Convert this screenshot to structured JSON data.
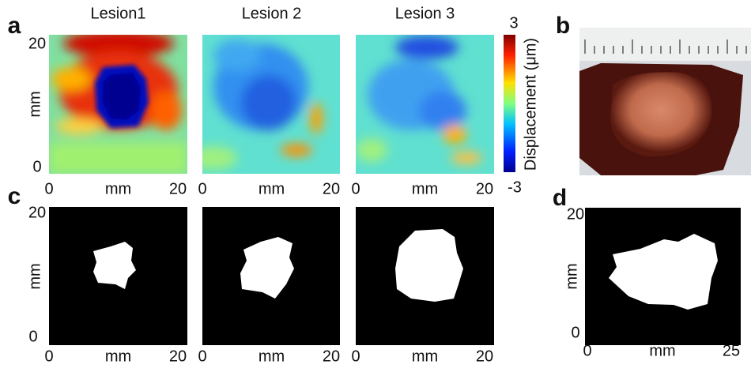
{
  "panel_a": {
    "label": "a",
    "titles": [
      "Lesion1",
      "Lesion 2",
      "Lesion 3"
    ],
    "y_axis": {
      "label": "mm",
      "ticks": [
        "20",
        "0"
      ]
    },
    "x_axis": {
      "label": "mm",
      "ticks": [
        "0",
        "20"
      ]
    },
    "colorbar": {
      "label": "Displacement (μm)",
      "max": "3",
      "min": "-3"
    }
  },
  "panel_b": {
    "label": "b"
  },
  "panel_c": {
    "label": "c",
    "y_axis": {
      "label": "mm",
      "ticks": [
        "20",
        "0"
      ]
    },
    "x_axis": {
      "label": "mm",
      "ticks": [
        "0",
        "20"
      ]
    }
  },
  "panel_d": {
    "label": "d",
    "y_axis": {
      "label": "mm",
      "ticks": [
        "20",
        "0"
      ]
    },
    "x_axis": {
      "label": "mm",
      "ticks": [
        "0",
        "25"
      ]
    }
  }
}
